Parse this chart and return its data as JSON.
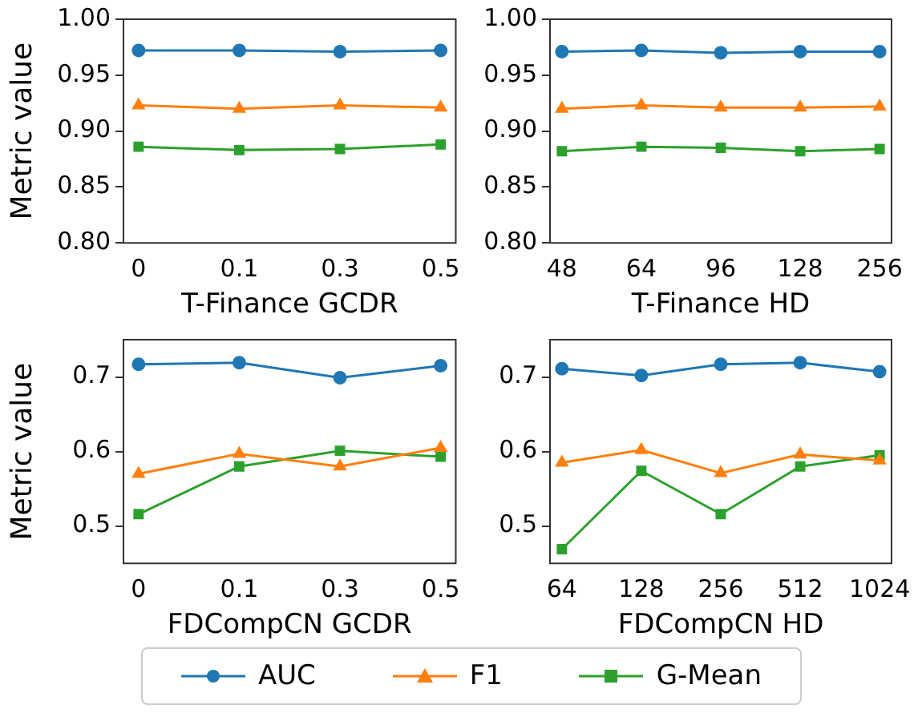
{
  "chart_data": [
    {
      "type": "line",
      "xlabel": "T-Finance GCDR",
      "ylabel": "Metric value",
      "categories": [
        "0",
        "0.1",
        "0.3",
        "0.5"
      ],
      "ylim": [
        0.8,
        1.0
      ],
      "yticks": [
        {
          "value": 0.8,
          "label": "0.80"
        },
        {
          "value": 0.85,
          "label": "0.85"
        },
        {
          "value": 0.9,
          "label": "0.90"
        },
        {
          "value": 0.95,
          "label": "0.95"
        },
        {
          "value": 1.0,
          "label": "1.00"
        }
      ],
      "grid": false,
      "legend": "bottom",
      "line_style": "solid",
      "series": [
        {
          "name": "AUC",
          "color": "#1f77b4",
          "marker": "circle",
          "values": [
            0.972,
            0.972,
            0.971,
            0.972
          ]
        },
        {
          "name": "F1",
          "color": "#ff7f0e",
          "marker": "triangle",
          "values": [
            0.923,
            0.92,
            0.923,
            0.921
          ]
        },
        {
          "name": "G-Mean",
          "color": "#2ca02c",
          "marker": "square",
          "values": [
            0.886,
            0.883,
            0.884,
            0.888
          ]
        }
      ]
    },
    {
      "type": "line",
      "xlabel": "T-Finance HD",
      "categories": [
        "48",
        "64",
        "96",
        "128",
        "256"
      ],
      "ylim": [
        0.8,
        1.0
      ],
      "yticks": [
        {
          "value": 0.8,
          "label": "0.80"
        },
        {
          "value": 0.85,
          "label": "0.85"
        },
        {
          "value": 0.9,
          "label": "0.90"
        },
        {
          "value": 0.95,
          "label": "0.95"
        },
        {
          "value": 1.0,
          "label": "1.00"
        }
      ],
      "grid": false,
      "legend": "bottom",
      "line_style": "solid",
      "series": [
        {
          "name": "AUC",
          "color": "#1f77b4",
          "marker": "circle",
          "values": [
            0.971,
            0.972,
            0.97,
            0.971,
            0.971
          ]
        },
        {
          "name": "F1",
          "color": "#ff7f0e",
          "marker": "triangle",
          "values": [
            0.92,
            0.923,
            0.921,
            0.921,
            0.922
          ]
        },
        {
          "name": "G-Mean",
          "color": "#2ca02c",
          "marker": "square",
          "values": [
            0.882,
            0.886,
            0.885,
            0.882,
            0.884
          ]
        }
      ]
    },
    {
      "type": "line",
      "xlabel": "FDCompCN GCDR",
      "ylabel": "Metric value",
      "categories": [
        "0",
        "0.1",
        "0.3",
        "0.5"
      ],
      "ylim": [
        0.45,
        0.75
      ],
      "yticks": [
        0.5,
        0.6,
        0.7
      ],
      "grid": false,
      "legend": "bottom",
      "line_style": "solid",
      "series": [
        {
          "name": "AUC",
          "color": "#1f77b4",
          "marker": "circle",
          "values": [
            0.717,
            0.719,
            0.699,
            0.715
          ]
        },
        {
          "name": "F1",
          "color": "#ff7f0e",
          "marker": "triangle",
          "values": [
            0.57,
            0.597,
            0.58,
            0.605
          ]
        },
        {
          "name": "G-Mean",
          "color": "#2ca02c",
          "marker": "square",
          "values": [
            0.516,
            0.58,
            0.601,
            0.593
          ]
        }
      ]
    },
    {
      "type": "line",
      "xlabel": "FDCompCN HD",
      "categories": [
        "64",
        "128",
        "256",
        "512",
        "1024"
      ],
      "ylim": [
        0.45,
        0.75
      ],
      "yticks": [
        0.5,
        0.6,
        0.7
      ],
      "grid": false,
      "legend": "bottom",
      "line_style": "solid",
      "series": [
        {
          "name": "AUC",
          "color": "#1f77b4",
          "marker": "circle",
          "values": [
            0.711,
            0.702,
            0.717,
            0.719,
            0.707
          ]
        },
        {
          "name": "F1",
          "color": "#ff7f0e",
          "marker": "triangle",
          "values": [
            0.585,
            0.602,
            0.571,
            0.596,
            0.588
          ]
        },
        {
          "name": "G-Mean",
          "color": "#2ca02c",
          "marker": "square",
          "values": [
            0.469,
            0.574,
            0.516,
            0.58,
            0.595
          ]
        }
      ]
    }
  ]
}
